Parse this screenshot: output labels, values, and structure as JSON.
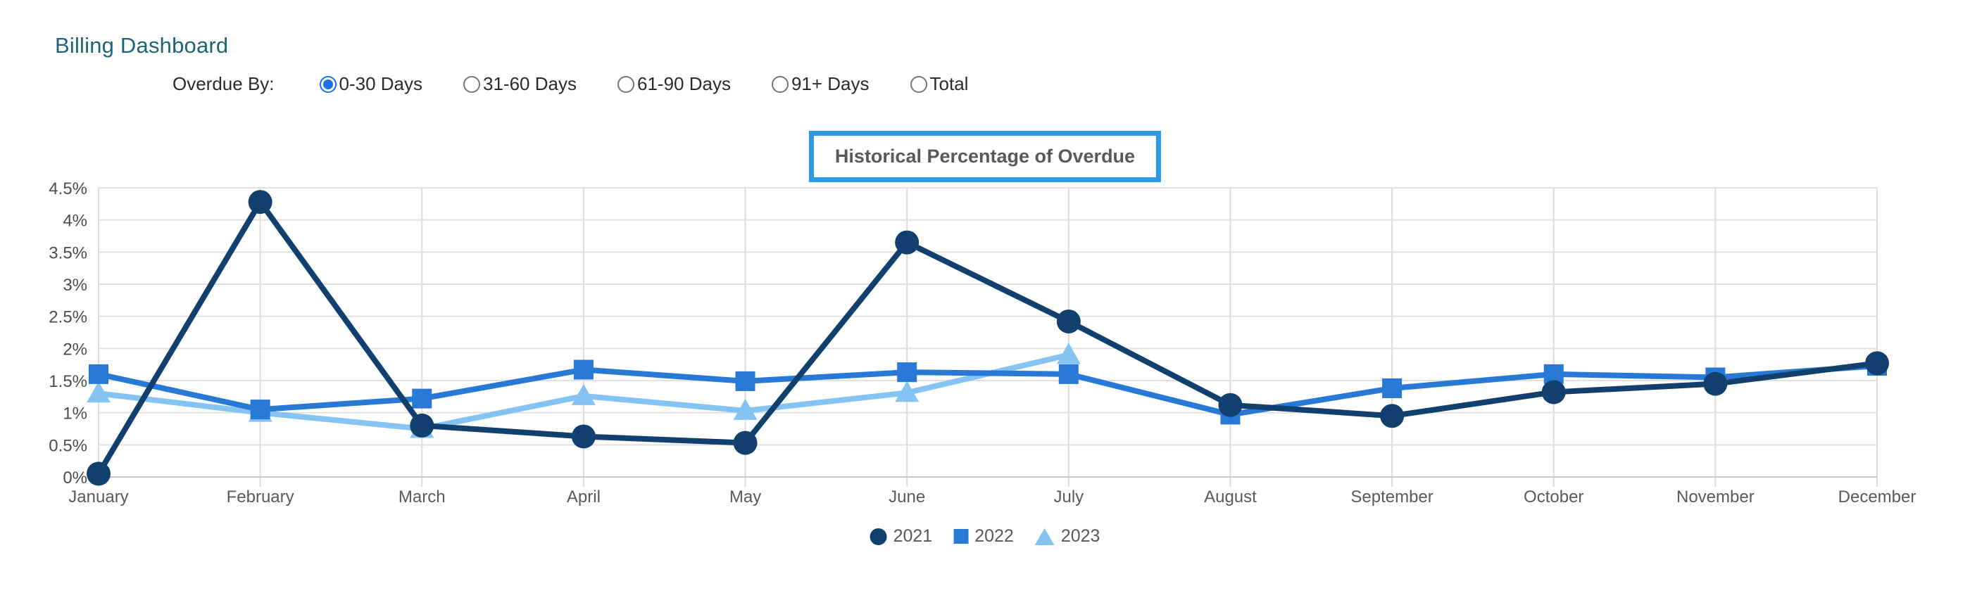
{
  "page": {
    "title": "Billing Dashboard",
    "title_color": "#1f6379"
  },
  "filters": {
    "label": "Overdue By:",
    "selected_color": "#1a73e8",
    "options": [
      {
        "label": "0-30 Days",
        "selected": true
      },
      {
        "label": "31-60 Days",
        "selected": false
      },
      {
        "label": "61-90 Days",
        "selected": false
      },
      {
        "label": "91+ Days",
        "selected": false
      },
      {
        "label": "Total",
        "selected": false
      }
    ]
  },
  "chart_data": {
    "type": "line",
    "title": "Historical Percentage of Overdue",
    "title_box_border_color": "#2b99e4",
    "xlabel": "",
    "ylabel": "",
    "ylim": [
      0,
      4.5
    ],
    "y_ticks": [
      "0%",
      "0.5%",
      "1%",
      "1.5%",
      "2%",
      "2.5%",
      "3%",
      "3.5%",
      "4%",
      "4.5%"
    ],
    "y_tick_values": [
      0,
      0.5,
      1,
      1.5,
      2,
      2.5,
      3,
      3.5,
      4,
      4.5
    ],
    "grid": true,
    "legend_position": "bottom",
    "categories": [
      "January",
      "February",
      "March",
      "April",
      "May",
      "June",
      "July",
      "August",
      "September",
      "October",
      "November",
      "December"
    ],
    "series": [
      {
        "name": "2021",
        "marker": "circle",
        "color": "#12406e",
        "values": [
          0.05,
          4.28,
          0.8,
          0.63,
          0.53,
          3.65,
          2.42,
          1.12,
          0.95,
          1.32,
          1.45,
          1.77
        ]
      },
      {
        "name": "2022",
        "marker": "square",
        "color": "#2878d6",
        "values": [
          1.6,
          1.05,
          1.22,
          1.67,
          1.49,
          1.63,
          1.6,
          0.97,
          1.38,
          1.6,
          1.55,
          1.73
        ]
      },
      {
        "name": "2023",
        "marker": "triangle",
        "color": "#85c4f2",
        "values": [
          1.3,
          1.0,
          0.75,
          1.26,
          1.03,
          1.31,
          1.9,
          null,
          null,
          null,
          null,
          null
        ]
      }
    ]
  }
}
